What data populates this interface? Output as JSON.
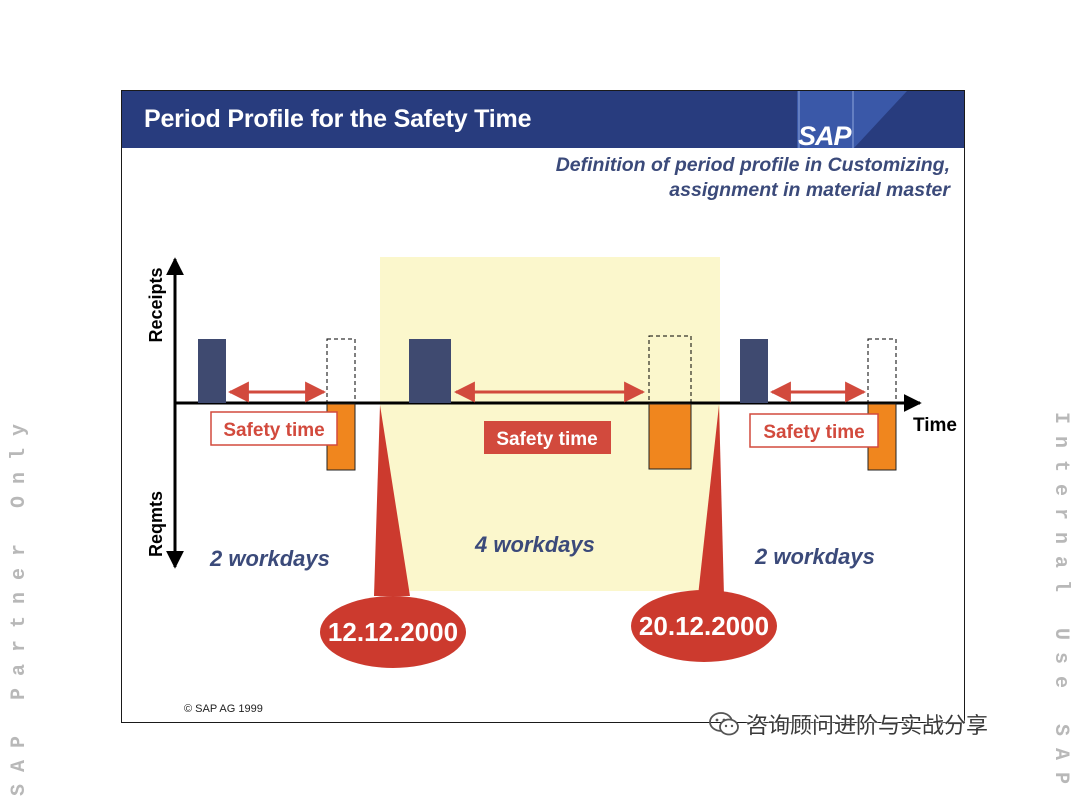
{
  "title": "Period Profile for the Safety Time",
  "logo": "SAP",
  "subtitle": {
    "line1": "Definition of period profile in Customizing,",
    "line2": "assignment in material master"
  },
  "axes": {
    "y_top_label": "Receipts",
    "y_bottom_label": "Reqmts",
    "x_label": "Time"
  },
  "sections": [
    {
      "workdays": "2 workdays",
      "safety_time": "Safety time"
    },
    {
      "workdays": "4 workdays",
      "safety_time": "Safety time"
    },
    {
      "workdays": "2 workdays",
      "safety_time": "Safety time"
    }
  ],
  "dates": {
    "start": "12.12.2000",
    "end": "20.12.2000"
  },
  "copyright": "© SAP AG 1999",
  "watermark_left": "SAP Partner Only",
  "watermark_right": "Internal Use SAP",
  "wechat_caption": "咨询顾问进阶与实战分享",
  "colors": {
    "title_bar": "#283c7e",
    "receipt_bar": "#3f4a70",
    "reqmt_bar": "#f0861e",
    "arrow": "#d24a3d",
    "highlight": "#fbf7cc",
    "date_bubble": "#cc3a2e",
    "text_blue": "#3b4a7a"
  }
}
